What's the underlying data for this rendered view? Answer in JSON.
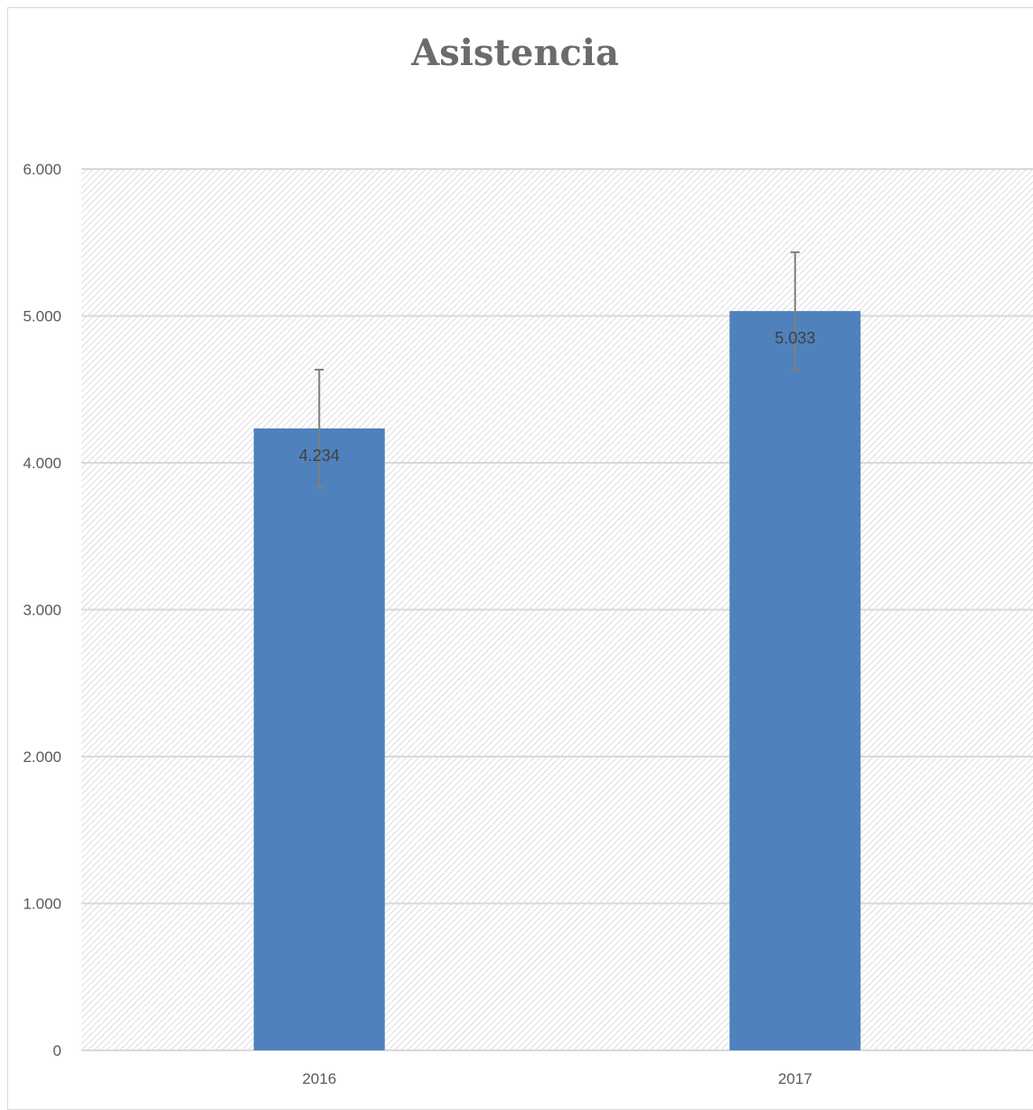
{
  "chart_data": {
    "type": "bar",
    "title": "Asistencia",
    "categories": [
      "2016",
      "2017"
    ],
    "series": [
      {
        "values": [
          4234,
          5033
        ],
        "data_labels": [
          "4.234",
          "5.033"
        ],
        "error_bars": {
          "plus": [
            400,
            400
          ],
          "minus": [
            400,
            400
          ]
        }
      }
    ],
    "ylim": [
      0,
      6000
    ],
    "y_ticks": [
      0,
      1000,
      2000,
      3000,
      4000,
      5000,
      6000
    ],
    "y_tick_labels": [
      "0",
      "1.000",
      "2.000",
      "3.000",
      "4.000",
      "5.000",
      "6.000"
    ],
    "grid": true,
    "legend": "none",
    "xlabel": "",
    "ylabel": ""
  },
  "colors": {
    "bar": "#4f81bd",
    "gridline": "#d9d9d9",
    "hatch": "#cfcfcf",
    "error_bar": "#7f7f7f",
    "axis": "#d9d9d9"
  }
}
